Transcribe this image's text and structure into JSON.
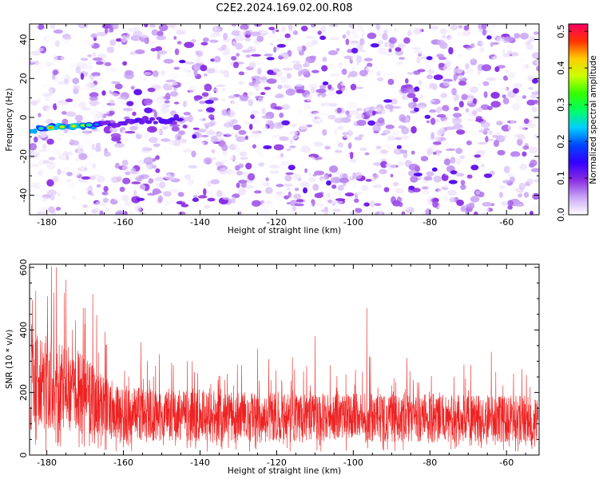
{
  "title": "C2E2.2024.169.02.00.R08",
  "chart_data": [
    {
      "type": "heatmap",
      "xlabel": "Height of straight line (km)",
      "ylabel": "Frequency (Hz)",
      "xlim": [
        -184.5,
        -51.5
      ],
      "ylim": [
        -50,
        48
      ],
      "x_ticks": [
        -180,
        -160,
        -140,
        -120,
        -100,
        -80,
        -60
      ],
      "y_ticks": [
        -40,
        -20,
        0,
        20,
        40
      ],
      "colorbar": {
        "label": "Normalized spectral amplitude",
        "range": [
          0,
          0.52
        ],
        "ticks": [
          0.0,
          0.1,
          0.2,
          0.3,
          0.4,
          0.5
        ],
        "tick_labels": [
          "0.0",
          "0.1",
          "0.2",
          "0.3",
          "0.4",
          "0.5"
        ],
        "colormap": [
          "#ffffff",
          "#c9a6f5",
          "#8a2be2",
          "#3300ff",
          "#0044ff",
          "#00ccff",
          "#00ff66",
          "#33ff00",
          "#ccff00",
          "#ffcc00",
          "#ff3300",
          "#ff0066"
        ]
      },
      "band": {
        "frequency": -6,
        "x_start": -184,
        "x_end": -145,
        "strong_x_end": -166,
        "peak_amplitude": 0.45
      },
      "grid": false
    },
    {
      "type": "line",
      "xlabel": "Height of straight line (km)",
      "ylabel": "SNR (10 * v/v)",
      "xlim": [
        -184.5,
        -51.5
      ],
      "ylim": [
        0,
        610
      ],
      "x_ticks": [
        -180,
        -160,
        -140,
        -120,
        -100,
        -80,
        -60
      ],
      "y_ticks": [
        0,
        200,
        400,
        600
      ],
      "color": "#ee2222",
      "mean_profile": [
        [
          -184,
          240
        ],
        [
          -176,
          220
        ],
        [
          -170,
          190
        ],
        [
          -165,
          150
        ],
        [
          -160,
          135
        ],
        [
          -140,
          125
        ],
        [
          -120,
          120
        ],
        [
          -100,
          120
        ],
        [
          -80,
          118
        ],
        [
          -52,
          115
        ]
      ],
      "spikes": [
        [
          -177.5,
          600
        ],
        [
          -178.2,
          520
        ],
        [
          -168.0,
          515
        ],
        [
          -170.5,
          470
        ],
        [
          -172.5,
          430
        ],
        [
          -184.0,
          400
        ],
        [
          -175.0,
          560
        ],
        [
          -96.5,
          470
        ],
        [
          -110.0,
          380
        ],
        [
          -142.0,
          300
        ],
        [
          -125.0,
          340
        ],
        [
          -64.0,
          330
        ],
        [
          -86.0,
          310
        ]
      ],
      "grid": false
    }
  ]
}
